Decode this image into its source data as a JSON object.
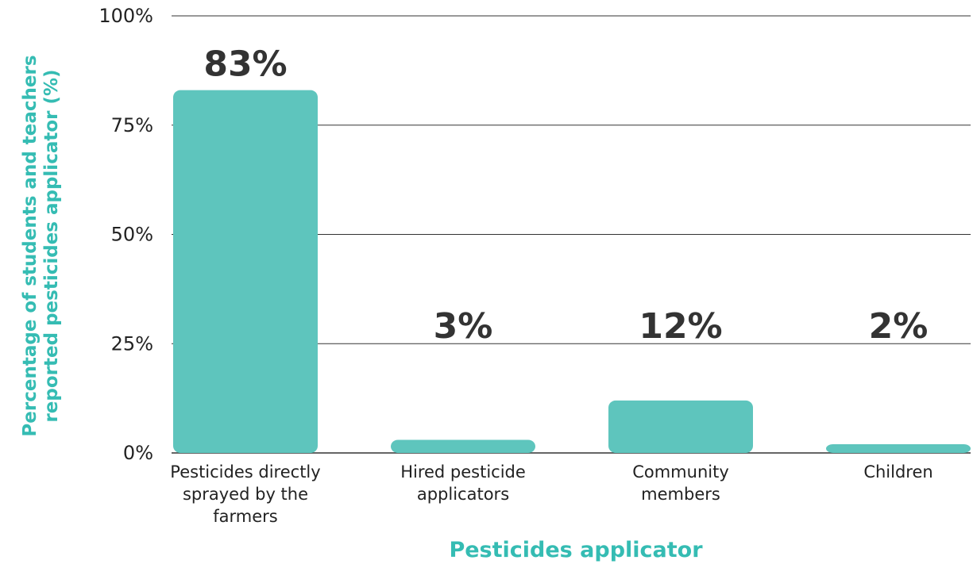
{
  "chart_data": {
    "type": "bar",
    "categories": [
      [
        "Pesticides directly",
        "sprayed by the",
        "farmers"
      ],
      [
        "Hired pesticide",
        "applicators"
      ],
      [
        "Community",
        "members"
      ],
      [
        "Children"
      ]
    ],
    "values": [
      83,
      3,
      12,
      2
    ],
    "data_labels": [
      "83%",
      "3%",
      "12%",
      "2%"
    ],
    "xlabel": "Pesticides applicator",
    "ylabel": [
      "Percentage of students and teachers",
      "reported pesticides applicator (%)"
    ],
    "yticks": [
      "0%",
      "25%",
      "50%",
      "75%",
      "100%"
    ],
    "ylim": [
      0,
      100
    ],
    "grid": true,
    "colors": {
      "bar": "#5ec5bd",
      "axis_title": "#35bcb3",
      "grid": "#333333"
    }
  }
}
